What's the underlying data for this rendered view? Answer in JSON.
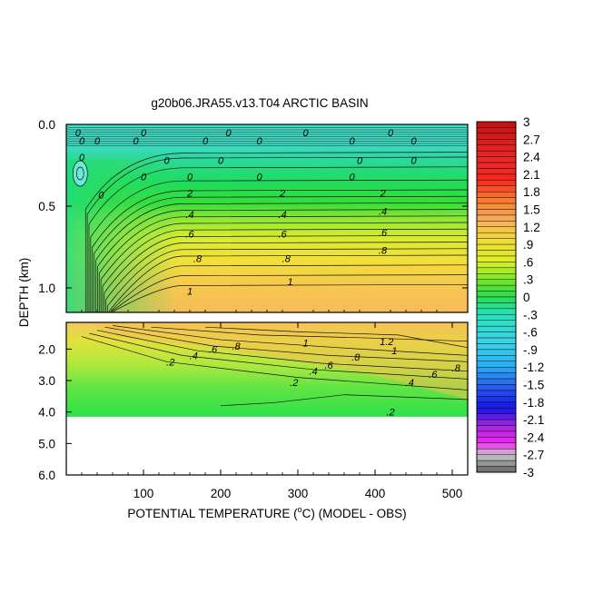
{
  "chart_data": {
    "type": "heatmap",
    "title": "g20b06.JRA55.v13.T04 ARCTIC BASIN",
    "xlabel": "POTENTIAL TEMPERATURE (",
    "xlabel_degree": "o",
    "xlabel_suffix": "C) (MODEL - OBS)",
    "ylabel": "DEPTH (km)",
    "xlim": [
      0,
      520
    ],
    "x_ticks": [
      100,
      200,
      300,
      400,
      500
    ],
    "upper_panel": {
      "ylim": [
        0.0,
        1.15
      ],
      "y_ticks": [
        "0.0",
        "0.5",
        "1.0"
      ],
      "y_tick_values": [
        0.0,
        0.5,
        1.0
      ]
    },
    "lower_panel": {
      "ylim": [
        1.15,
        6.0
      ],
      "y_ticks": [
        "2.0",
        "3.0",
        "4.0",
        "5.0",
        "6.0"
      ],
      "y_tick_values": [
        2.0,
        3.0,
        4.0,
        5.0,
        6.0
      ],
      "data_bottom_depth": 4.15
    },
    "colorbar": {
      "min": -3.0,
      "max": 3.0,
      "step": 0.1,
      "tick_labels": [
        "3",
        "2.7",
        "2.4",
        "2.1",
        "1.8",
        "1.5",
        "1.2",
        ".9",
        ".6",
        ".3",
        "0",
        "-.3",
        "-.6",
        "-.9",
        "-1.2",
        "-1.5",
        "-1.8",
        "-2.1",
        "-2.4",
        "-2.7",
        "-3"
      ],
      "tick_values": [
        3.0,
        2.7,
        2.4,
        2.1,
        1.8,
        1.5,
        1.2,
        0.9,
        0.6,
        0.3,
        0.0,
        -0.3,
        -0.6,
        -0.9,
        -1.2,
        -1.5,
        -1.8,
        -2.1,
        -2.4,
        -2.7,
        -3.0
      ]
    },
    "contour_labels_upper": [
      {
        "text": "0",
        "x": 15,
        "y": 0.05
      },
      {
        "text": "0",
        "x": 100,
        "y": 0.05
      },
      {
        "text": "0",
        "x": 210,
        "y": 0.05
      },
      {
        "text": "0",
        "x": 310,
        "y": 0.05
      },
      {
        "text": "0",
        "x": 420,
        "y": 0.05
      },
      {
        "text": "0",
        "x": 20,
        "y": 0.1
      },
      {
        "text": "0",
        "x": 40,
        "y": 0.1
      },
      {
        "text": "0",
        "x": 90,
        "y": 0.1
      },
      {
        "text": "0",
        "x": 180,
        "y": 0.1
      },
      {
        "text": "0",
        "x": 250,
        "y": 0.1
      },
      {
        "text": "0",
        "x": 370,
        "y": 0.1
      },
      {
        "text": "0",
        "x": 450,
        "y": 0.1
      },
      {
        "text": "0",
        "x": 20,
        "y": 0.2
      },
      {
        "text": "0",
        "x": 130,
        "y": 0.22
      },
      {
        "text": "0",
        "x": 200,
        "y": 0.22
      },
      {
        "text": "0",
        "x": 380,
        "y": 0.22
      },
      {
        "text": "0",
        "x": 450,
        "y": 0.22
      },
      {
        "text": "0",
        "x": 100,
        "y": 0.32
      },
      {
        "text": "0",
        "x": 160,
        "y": 0.32
      },
      {
        "text": "0",
        "x": 250,
        "y": 0.32
      },
      {
        "text": "0",
        "x": 370,
        "y": 0.32
      },
      {
        "text": "0",
        "x": 45,
        "y": 0.43
      },
      {
        "text": "2",
        "x": 160,
        "y": 0.42
      },
      {
        "text": "2",
        "x": 280,
        "y": 0.42
      },
      {
        "text": "2",
        "x": 410,
        "y": 0.42
      },
      {
        "text": ".4",
        "x": 160,
        "y": 0.55
      },
      {
        "text": ".4",
        "x": 280,
        "y": 0.55
      },
      {
        "text": ".4",
        "x": 410,
        "y": 0.53
      },
      {
        "text": ".6",
        "x": 160,
        "y": 0.67
      },
      {
        "text": ".6",
        "x": 280,
        "y": 0.67
      },
      {
        "text": ".6",
        "x": 410,
        "y": 0.66
      },
      {
        "text": ".8",
        "x": 170,
        "y": 0.82
      },
      {
        "text": ".8",
        "x": 285,
        "y": 0.82
      },
      {
        "text": ".8",
        "x": 410,
        "y": 0.77
      },
      {
        "text": "1",
        "x": 160,
        "y": 1.02
      },
      {
        "text": "1",
        "x": 290,
        "y": 0.96
      }
    ],
    "contour_labels_lower": [
      {
        "text": ".8",
        "x": 220,
        "y": 1.9
      },
      {
        "text": "1",
        "x": 310,
        "y": 1.8
      },
      {
        "text": "1.2",
        "x": 415,
        "y": 1.75
      },
      {
        "text": ".6",
        "x": 190,
        "y": 2.0
      },
      {
        "text": ".4",
        "x": 165,
        "y": 2.2
      },
      {
        "text": ".2",
        "x": 135,
        "y": 2.4
      },
      {
        "text": "1",
        "x": 425,
        "y": 2.05
      },
      {
        "text": ".8",
        "x": 375,
        "y": 2.25
      },
      {
        "text": ".6",
        "x": 340,
        "y": 2.5
      },
      {
        "text": ".4",
        "x": 320,
        "y": 2.7
      },
      {
        "text": ".2",
        "x": 295,
        "y": 3.05
      },
      {
        "text": ".8",
        "x": 505,
        "y": 2.6
      },
      {
        "text": ".6",
        "x": 475,
        "y": 2.8
      },
      {
        "text": ".4",
        "x": 445,
        "y": 3.05
      },
      {
        "text": ".2",
        "x": 420,
        "y": 4.0
      }
    ]
  }
}
